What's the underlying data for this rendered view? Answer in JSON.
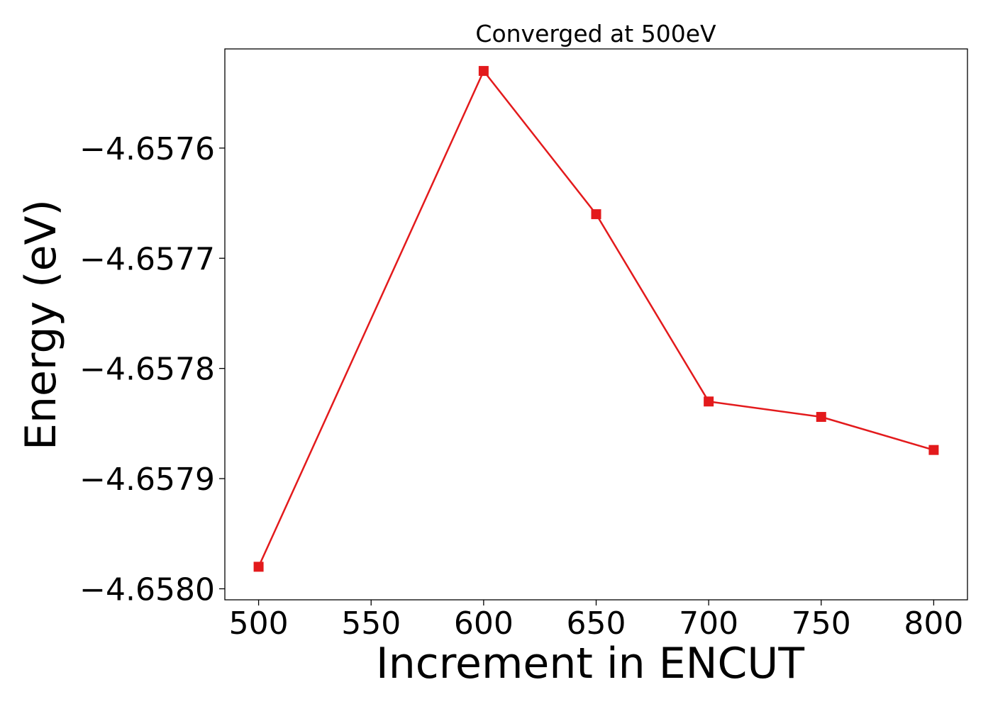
{
  "chart_data": {
    "type": "line",
    "title": "Converged at 500eV",
    "xlabel": "Increment in ENCUT",
    "ylabel": "Energy (eV)",
    "x": [
      500,
      600,
      650,
      700,
      750,
      800
    ],
    "series": [
      {
        "values": [
          -4.65798,
          -4.65753,
          -4.65766,
          -4.65783,
          -4.657844,
          -4.657874
        ]
      }
    ],
    "xlim": [
      485,
      815
    ],
    "ylim": [
      -4.65801,
      -4.65751
    ],
    "xticks": [
      500,
      550,
      600,
      650,
      700,
      750,
      800
    ],
    "xtick_labels": [
      "500",
      "550",
      "600",
      "650",
      "700",
      "750",
      "800"
    ],
    "yticks": [
      -4.6576,
      -4.6577,
      -4.6578,
      -4.6579,
      -4.658
    ],
    "ytick_labels": [
      "−4.6576",
      "−4.6577",
      "−4.6578",
      "−4.6579",
      "−4.6580"
    ],
    "grid": false,
    "line_color": "#e31a1c",
    "marker": "square"
  }
}
